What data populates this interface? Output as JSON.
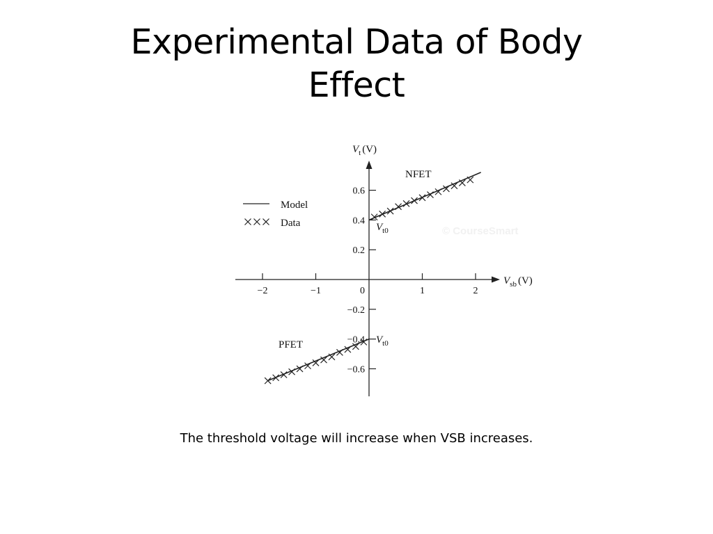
{
  "slide": {
    "title_line1": "Experimental Data of Body",
    "title_line2": "Effect",
    "caption": "The threshold voltage will increase when VSB increases."
  },
  "chart_data": {
    "type": "line",
    "xlabel": {
      "main": "V",
      "sub": "sb",
      "unit": "(V)"
    },
    "ylabel": {
      "main": "V",
      "sub": "t",
      "unit": "(V)"
    },
    "xlim": [
      -2.0,
      2.0
    ],
    "ylim": [
      -0.8,
      0.8
    ],
    "x_ticks": [
      {
        "value": -2,
        "label": "−2"
      },
      {
        "value": -1,
        "label": "−1"
      },
      {
        "value": 0,
        "label": "0"
      },
      {
        "value": 1,
        "label": "1"
      },
      {
        "value": 2,
        "label": "2"
      }
    ],
    "y_ticks": [
      {
        "value": 0.6,
        "label": "0.6"
      },
      {
        "value": 0.4,
        "label": "0.4"
      },
      {
        "value": 0.2,
        "label": "0.2"
      },
      {
        "value": -0.2,
        "label": "−0.2"
      },
      {
        "value": -0.4,
        "label": "−0.4"
      },
      {
        "value": -0.6,
        "label": "−0.6"
      }
    ],
    "legend": {
      "placement": "upper-left",
      "items": [
        {
          "symbol": "line",
          "label": "Model"
        },
        {
          "symbol": "xxx",
          "label": "Data"
        }
      ]
    },
    "series": [
      {
        "name": "NFET",
        "model_line": {
          "x": [
            0.0,
            2.1
          ],
          "y": [
            0.4,
            0.72
          ]
        },
        "data_x": [
          0.1,
          0.25,
          0.4,
          0.55,
          0.7,
          0.85,
          1.0,
          1.15,
          1.3,
          1.45,
          1.6,
          1.75,
          1.9
        ],
        "data_y": [
          0.42,
          0.44,
          0.46,
          0.49,
          0.51,
          0.53,
          0.55,
          0.57,
          0.59,
          0.61,
          0.63,
          0.65,
          0.67
        ],
        "vt0_label": {
          "main": "V",
          "sub": "t0"
        }
      },
      {
        "name": "PFET",
        "model_line": {
          "x": [
            -1.9,
            0.0
          ],
          "y": [
            -0.68,
            -0.4
          ]
        },
        "data_x": [
          -1.9,
          -1.75,
          -1.6,
          -1.45,
          -1.3,
          -1.15,
          -1.0,
          -0.85,
          -0.7,
          -0.55,
          -0.4,
          -0.25,
          -0.1
        ],
        "data_y": [
          -0.68,
          -0.66,
          -0.64,
          -0.62,
          -0.6,
          -0.58,
          -0.56,
          -0.54,
          -0.52,
          -0.49,
          -0.47,
          -0.45,
          -0.42
        ],
        "vt0_label": {
          "main": "V",
          "sub": "t0"
        }
      }
    ],
    "watermark": "© CourseSmart",
    "grid": false
  }
}
